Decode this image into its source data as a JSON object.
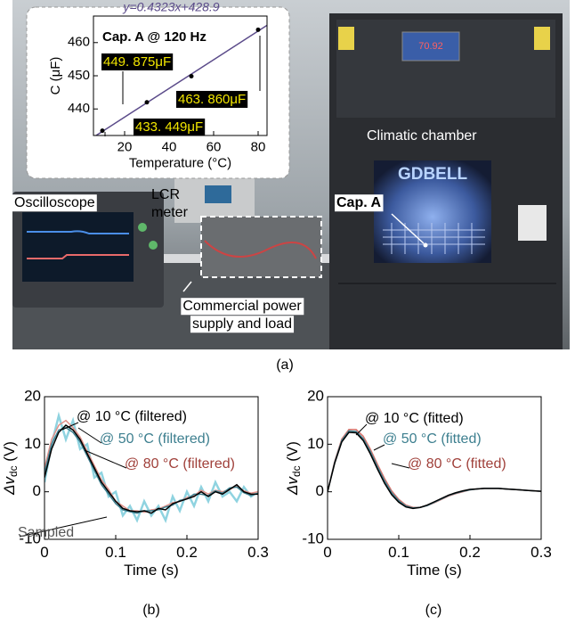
{
  "photo": {
    "labels": [
      {
        "lines": [
          "Oscilloscope"
        ]
      },
      {
        "lines": [
          "LCR",
          "meter"
        ]
      },
      {
        "lines": [
          "Climatic chamber"
        ]
      },
      {
        "lines": [
          "Cap. A"
        ]
      },
      {
        "lines": [
          "Commercial power",
          "supply and load"
        ]
      }
    ],
    "brand": "GDBELL",
    "screen": "70.92"
  },
  "panel_labels": [
    "(a)",
    "(b)",
    "(c)"
  ],
  "chart_data": [
    {
      "type": "scatter",
      "title": "Cap. A @ 120 Hz",
      "xlabel": "Temperature (°C)",
      "ylabel": "C (μF)",
      "x": [
        10,
        30,
        50,
        80
      ],
      "values": [
        433.449,
        442,
        449.875,
        463.86
      ],
      "value_labels": [
        "433. 449μF",
        null,
        "449. 875μF",
        "463. 860μF"
      ],
      "color": "#000000",
      "fit": {
        "label": "y=0.4323x+428.9",
        "slope": 0.4323,
        "intercept": 428.9,
        "color": "#5b4b8a"
      },
      "xlim": [
        6,
        84
      ],
      "xticks": [
        20,
        40,
        60,
        80
      ],
      "ylim": [
        432,
        468
      ],
      "yticks": [
        440,
        450,
        460
      ]
    },
    {
      "type": "line",
      "xlabel": "Time (s)",
      "ylabel": {
        "text": "Δv",
        "subscript": "dc",
        "suffix": " (V)"
      },
      "x": [
        0,
        0.01,
        0.02,
        0.03,
        0.04,
        0.05,
        0.06,
        0.07,
        0.08,
        0.09,
        0.1,
        0.11,
        0.12,
        0.13,
        0.14,
        0.15,
        0.16,
        0.17,
        0.18,
        0.19,
        0.2,
        0.21,
        0.22,
        0.23,
        0.24,
        0.25,
        0.26,
        0.27,
        0.28,
        0.29,
        0.3
      ],
      "series": [
        {
          "name": "Sampled",
          "color": "#8fd3e0",
          "label_color": "#555555",
          "values": [
            2,
            10,
            16,
            11,
            15,
            9,
            10,
            3,
            4,
            -1,
            0,
            -5,
            -3,
            -6,
            -2,
            -5,
            -3,
            -6,
            -1,
            -4,
            0,
            -3,
            1,
            -2,
            2,
            -1,
            0,
            -2,
            1,
            -1,
            0
          ]
        },
        {
          "name": "@ 80 °C (filtered)",
          "color": "#e0918a",
          "label_color": "#a0403a",
          "values": [
            5,
            11,
            14,
            15,
            13.5,
            11.5,
            8.5,
            5.5,
            2.5,
            0.5,
            -2,
            -3,
            -4,
            -4,
            -4.3,
            -3.8,
            -3.6,
            -3,
            -2.3,
            -2,
            -1.2,
            -0.8,
            0.3,
            -0.5,
            0.3,
            0,
            0.5,
            1.2,
            0.2,
            -0.3,
            0
          ]
        },
        {
          "name": "@ 50 °C (filtered)",
          "color": "#3d7f8f",
          "label_color": "#3d7f8f",
          "values": [
            4,
            10,
            13,
            13.5,
            12.5,
            10.5,
            7.5,
            4.5,
            1.5,
            -0.5,
            -2.5,
            -3.8,
            -4.2,
            -4.5,
            -4,
            -4,
            -3.8,
            -3.2,
            -2.8,
            -1.8,
            -1.5,
            -0.5,
            -0.5,
            -0.8,
            0.2,
            -0.3,
            0.8,
            1,
            -0.2,
            -0.8,
            -0.3
          ]
        },
        {
          "name": "@ 10 °C (filtered)",
          "color": "#000000",
          "label_color": "#000000",
          "values": [
            3,
            9,
            12.5,
            14,
            13,
            11,
            8,
            5,
            2,
            0,
            -2,
            -3.5,
            -4,
            -4.2,
            -4,
            -4.5,
            -3.5,
            -3.8,
            -2.5,
            -2,
            -1.5,
            -1,
            0,
            -1,
            0,
            -0.5,
            0.5,
            1.5,
            0,
            -0.5,
            -0.5
          ]
        }
      ],
      "xlim": [
        0,
        0.3
      ],
      "xticks": [
        0,
        0.1,
        0.2,
        0.3
      ],
      "ylim": [
        -10,
        20
      ],
      "yticks": [
        -10,
        0,
        10,
        20
      ]
    },
    {
      "type": "line",
      "xlabel": "Time (s)",
      "ylabel": {
        "text": "Δv",
        "subscript": "dc",
        "suffix": " (V)"
      },
      "x": [
        0,
        0.01,
        0.02,
        0.03,
        0.04,
        0.05,
        0.06,
        0.07,
        0.08,
        0.09,
        0.1,
        0.11,
        0.12,
        0.13,
        0.14,
        0.15,
        0.16,
        0.17,
        0.18,
        0.19,
        0.2,
        0.21,
        0.22,
        0.23,
        0.24,
        0.25,
        0.26,
        0.27,
        0.28,
        0.29,
        0.3
      ],
      "series": [
        {
          "name": "@ 80 °C (fitted)",
          "color": "#d9776f",
          "label_color": "#a0403a",
          "values": [
            0,
            6.4,
            11.1,
            13.1,
            13.1,
            11.7,
            9,
            5.8,
            2.8,
            0.2,
            -1.6,
            -2.8,
            -3.3,
            -3.3,
            -2.9,
            -2.3,
            -1.6,
            -0.9,
            -0.4,
            0,
            0.4,
            0.6,
            0.7,
            0.7,
            0.7,
            0.6,
            0.5,
            0.4,
            0.3,
            0.2,
            0.1
          ]
        },
        {
          "name": "@ 50 °C (fitted)",
          "color": "#3d7f8f",
          "label_color": "#3d7f8f",
          "values": [
            0,
            6.2,
            10.8,
            12.8,
            12.7,
            11.2,
            8.5,
            5.3,
            2.3,
            -0.2,
            -1.9,
            -3,
            -3.4,
            -3.3,
            -2.9,
            -2.2,
            -1.5,
            -0.8,
            -0.3,
            0.1,
            0.4,
            0.6,
            0.7,
            0.7,
            0.7,
            0.6,
            0.5,
            0.4,
            0.3,
            0.2,
            0.1
          ]
        },
        {
          "name": "@ 10 °C (fitted)",
          "color": "#000000",
          "label_color": "#000000",
          "values": [
            0,
            6,
            10.5,
            12.5,
            12.4,
            10.8,
            8,
            4.8,
            1.8,
            -0.6,
            -2.2,
            -3.2,
            -3.5,
            -3.3,
            -2.8,
            -2.1,
            -1.4,
            -0.7,
            -0.2,
            0.2,
            0.5,
            0.6,
            0.7,
            0.7,
            0.7,
            0.6,
            0.5,
            0.4,
            0.3,
            0.2,
            0.1
          ]
        }
      ],
      "xlim": [
        0,
        0.3
      ],
      "xticks": [
        0,
        0.1,
        0.2,
        0.3
      ],
      "ylim": [
        -10,
        20
      ],
      "yticks": [
        -10,
        0,
        10,
        20
      ]
    }
  ]
}
